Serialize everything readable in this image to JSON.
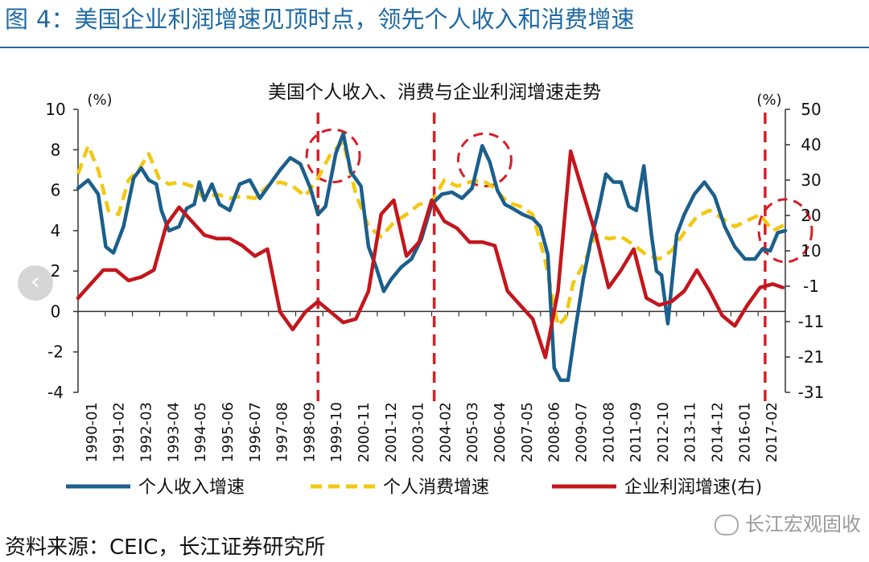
{
  "header": {
    "label": "图",
    "number": "4：",
    "text": "美国企业利润增速见顶时点，领先个人收入和消费增速"
  },
  "source": "资料来源：CEIC，长江证券研究所",
  "watermark": "长江宏观固收",
  "nav": {
    "prev_symbol": "‹"
  },
  "colors": {
    "income": "#1b5f8c",
    "consumption": "#f2c811",
    "profit": "#c3161c",
    "accent": "#1f6aa5"
  },
  "chart_data": {
    "type": "line",
    "title": "美国个人收入、消费与企业利润增速走势",
    "left_unit": "(%)",
    "right_unit": "(%)",
    "xlim": [
      1990.0,
      2018.0
    ],
    "ylim_left": [
      -4,
      10
    ],
    "ylim_right": [
      -31,
      50
    ],
    "yticks_left": [
      "10",
      "8",
      "6",
      "4",
      "2",
      "0",
      "-2",
      "-4"
    ],
    "yticks_right": [
      "50",
      "40",
      "30",
      "20",
      "10",
      "-1",
      "-11",
      "-21",
      "-31"
    ],
    "xticks": [
      "1990-01",
      "1991-02",
      "1992-03",
      "1993-04",
      "1994-05",
      "1995-06",
      "1996-07",
      "1997-08",
      "1998-09",
      "1999-10",
      "2000-11",
      "2001-12",
      "2003-01",
      "2004-02",
      "2005-03",
      "2006-04",
      "2007-05",
      "2008-06",
      "2009-07",
      "2010-08",
      "2011-09",
      "2012-10",
      "2013-11",
      "2014-12",
      "2016-01",
      "2017-02"
    ],
    "vlines": [
      1999.5,
      2004.1,
      2017.2
    ],
    "circles": [
      {
        "x": 2000.1,
        "y": 7.7,
        "rx": 1.05,
        "ry": 1.3
      },
      {
        "x": 2006.1,
        "y": 7.5,
        "rx": 1.05,
        "ry": 1.3
      },
      {
        "x": 2018.0,
        "y": 4.0,
        "rx": 1.05,
        "ry": 1.55
      }
    ],
    "series": [
      {
        "name": "个人收入增速",
        "axis": "left",
        "style": "solid",
        "x": [
          1990.0,
          1990.4,
          1990.8,
          1991.1,
          1991.4,
          1991.8,
          1992.2,
          1992.5,
          1992.8,
          1993.1,
          1993.3,
          1993.6,
          1994.0,
          1994.3,
          1994.6,
          1994.8,
          1995.0,
          1995.3,
          1995.6,
          1996.0,
          1996.4,
          1996.8,
          1997.2,
          1997.6,
          1998.0,
          1998.4,
          1998.8,
          1999.2,
          1999.5,
          1999.8,
          2000.2,
          2000.5,
          2000.8,
          2001.2,
          2001.5,
          2001.8,
          2002.1,
          2002.4,
          2002.8,
          2003.2,
          2003.6,
          2004.0,
          2004.4,
          2004.8,
          2005.2,
          2005.6,
          2006.0,
          2006.3,
          2006.6,
          2006.9,
          2007.2,
          2007.6,
          2008.0,
          2008.3,
          2008.6,
          2008.85,
          2009.1,
          2009.4,
          2009.7,
          2010.0,
          2010.3,
          2010.6,
          2010.9,
          2011.2,
          2011.5,
          2011.8,
          2012.1,
          2012.4,
          2012.7,
          2012.9,
          2013.1,
          2013.35,
          2013.7,
          2014.0,
          2014.4,
          2014.8,
          2015.2,
          2015.6,
          2016.0,
          2016.4,
          2016.8,
          2017.1,
          2017.4,
          2017.7,
          2018.0
        ],
        "y": [
          6.1,
          6.5,
          5.8,
          3.2,
          2.9,
          4.2,
          6.6,
          7.1,
          6.5,
          6.3,
          5.0,
          4.0,
          4.2,
          5.1,
          5.3,
          6.4,
          5.5,
          6.3,
          5.3,
          5.0,
          6.3,
          6.5,
          5.6,
          6.3,
          7.0,
          7.6,
          7.3,
          6.1,
          4.8,
          5.2,
          7.8,
          8.8,
          6.9,
          6.2,
          3.2,
          2.2,
          1.0,
          1.6,
          2.2,
          2.6,
          3.6,
          5.3,
          5.8,
          5.9,
          5.6,
          6.1,
          8.2,
          7.4,
          6.0,
          5.3,
          5.1,
          4.8,
          4.6,
          4.2,
          2.8,
          -2.8,
          -3.4,
          -3.4,
          -0.8,
          1.6,
          3.5,
          5.0,
          6.8,
          6.4,
          6.4,
          5.2,
          5.0,
          7.2,
          3.8,
          2.0,
          1.8,
          -0.6,
          3.8,
          4.8,
          5.8,
          6.4,
          5.7,
          4.2,
          3.2,
          2.6,
          2.6,
          3.1,
          3.0,
          3.9,
          4.0
        ]
      },
      {
        "name": "个人消费增速",
        "axis": "left",
        "style": "dashed",
        "x": [
          1990.0,
          1990.4,
          1990.8,
          1991.2,
          1991.6,
          1992.0,
          1992.4,
          1992.8,
          1993.2,
          1993.6,
          1994.0,
          1994.5,
          1995.0,
          1995.5,
          1996.0,
          1996.5,
          1997.0,
          1997.5,
          1998.0,
          1998.5,
          1999.0,
          1999.5,
          2000.0,
          2000.5,
          2001.0,
          2001.5,
          2002.0,
          2002.5,
          2003.0,
          2003.5,
          2004.0,
          2004.5,
          2005.0,
          2005.5,
          2006.0,
          2006.5,
          2007.0,
          2007.5,
          2008.0,
          2008.5,
          2009.0,
          2009.3,
          2009.6,
          2010.0,
          2010.5,
          2011.0,
          2011.5,
          2012.0,
          2012.5,
          2013.0,
          2013.5,
          2014.0,
          2014.5,
          2015.0,
          2015.5,
          2016.0,
          2016.5,
          2017.0,
          2017.5,
          2018.0
        ],
        "y": [
          6.8,
          8.2,
          7.0,
          5.0,
          4.8,
          6.5,
          7.0,
          7.8,
          6.6,
          6.3,
          6.4,
          6.2,
          5.6,
          5.8,
          5.6,
          5.7,
          5.6,
          6.2,
          6.4,
          6.2,
          5.7,
          6.6,
          7.8,
          8.4,
          5.8,
          4.2,
          3.7,
          4.4,
          4.8,
          5.3,
          5.4,
          6.5,
          6.2,
          6.4,
          6.5,
          6.1,
          5.4,
          5.2,
          4.8,
          2.5,
          -0.7,
          -0.3,
          1.4,
          2.3,
          3.8,
          3.6,
          3.7,
          3.3,
          2.8,
          2.6,
          3.0,
          3.9,
          4.7,
          5.0,
          4.6,
          4.2,
          4.5,
          4.8,
          4.0,
          4.3
        ]
      },
      {
        "name": "企业利润增速(右)",
        "axis": "right",
        "style": "solid",
        "x": [
          1990.0,
          1990.5,
          1991.0,
          1991.5,
          1992.0,
          1992.5,
          1993.0,
          1993.5,
          1994.0,
          1994.5,
          1995.0,
          1995.5,
          1996.0,
          1996.5,
          1997.0,
          1997.5,
          1998.0,
          1998.5,
          1999.0,
          1999.5,
          2000.0,
          2000.5,
          2001.0,
          2001.5,
          2002.0,
          2002.5,
          2003.0,
          2003.5,
          2004.0,
          2004.5,
          2005.0,
          2005.5,
          2006.0,
          2006.5,
          2007.0,
          2007.5,
          2008.0,
          2008.5,
          2009.0,
          2009.5,
          2010.0,
          2010.5,
          2011.0,
          2011.5,
          2012.0,
          2012.5,
          2013.0,
          2013.5,
          2014.0,
          2014.5,
          2015.0,
          2015.5,
          2016.0,
          2016.5,
          2017.0,
          2017.5,
          2017.9
        ],
        "y": [
          -4,
          0,
          4,
          4,
          1,
          2,
          4,
          17,
          22,
          18,
          14,
          13,
          13,
          11,
          8,
          10,
          -8,
          -13,
          -8,
          -5,
          -8,
          -11,
          -10,
          -2,
          20,
          24,
          8,
          12,
          24,
          18,
          16,
          12,
          12,
          11,
          -2,
          -6,
          -10,
          -21,
          -2,
          38,
          26,
          14,
          -1,
          4,
          10,
          -4,
          -6,
          -5,
          -2,
          4,
          -2,
          -9,
          -12,
          -6,
          -1,
          0,
          -1
        ]
      }
    ]
  }
}
